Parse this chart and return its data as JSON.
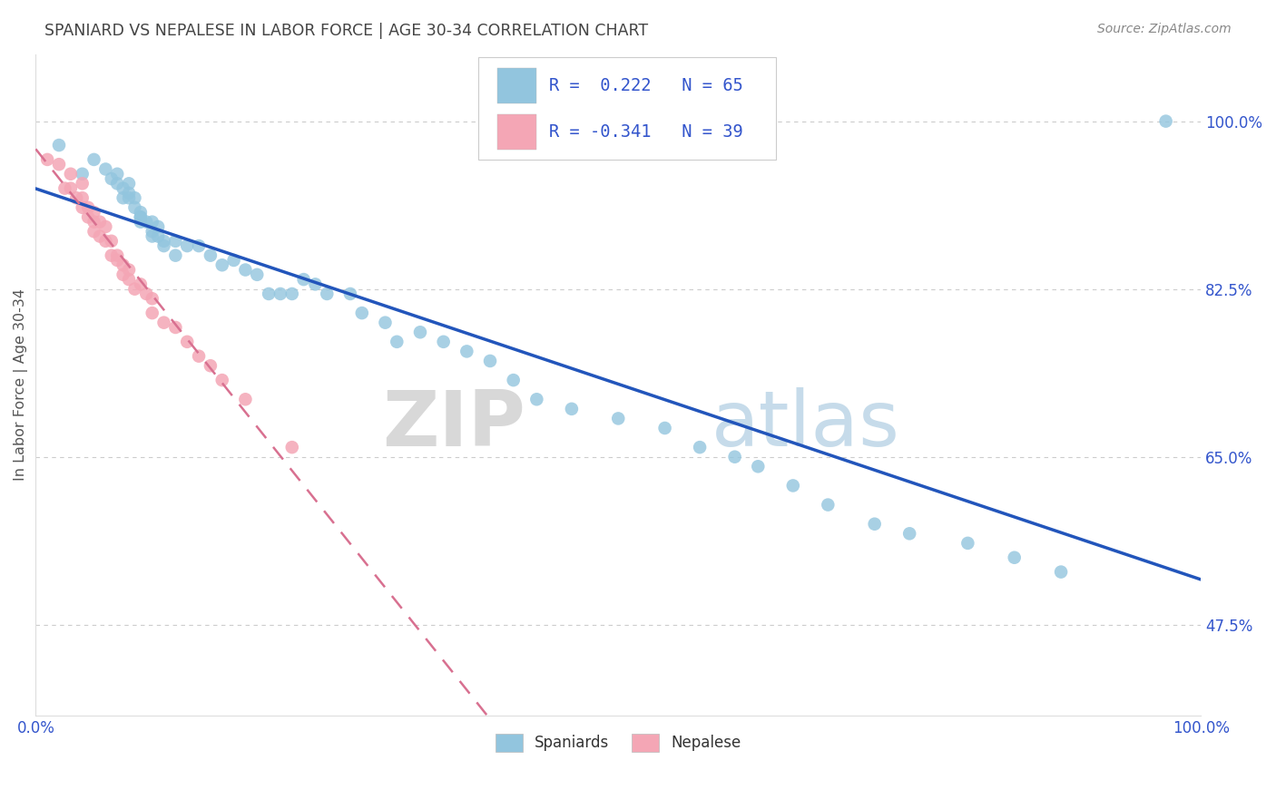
{
  "title": "SPANIARD VS NEPALESE IN LABOR FORCE | AGE 30-34 CORRELATION CHART",
  "source": "Source: ZipAtlas.com",
  "ylabel": "In Labor Force | Age 30-34",
  "y_tick_labels": [
    "47.5%",
    "65.0%",
    "82.5%",
    "100.0%"
  ],
  "y_tick_values": [
    0.475,
    0.65,
    0.825,
    1.0
  ],
  "xlim": [
    0.0,
    1.0
  ],
  "ylim": [
    0.38,
    1.07
  ],
  "legend_label_1": "Spaniards",
  "legend_label_2": "Nepalese",
  "r1": 0.222,
  "n1": 65,
  "r2": -0.341,
  "n2": 39,
  "blue_color": "#92c5de",
  "blue_line_color": "#2255bb",
  "pink_color": "#f4a6b5",
  "pink_line_color": "#d87090",
  "watermark_zip": "ZIP",
  "watermark_atlas": "atlas",
  "background_color": "#ffffff",
  "grid_color": "#cccccc",
  "title_color": "#444444",
  "axis_label_color": "#555555",
  "stats_color": "#3355cc",
  "spaniard_x": [
    0.02,
    0.04,
    0.05,
    0.06,
    0.065,
    0.07,
    0.07,
    0.075,
    0.075,
    0.08,
    0.08,
    0.08,
    0.085,
    0.085,
    0.09,
    0.09,
    0.09,
    0.09,
    0.095,
    0.1,
    0.1,
    0.1,
    0.105,
    0.105,
    0.11,
    0.11,
    0.12,
    0.12,
    0.13,
    0.14,
    0.15,
    0.16,
    0.17,
    0.18,
    0.19,
    0.2,
    0.21,
    0.22,
    0.23,
    0.24,
    0.25,
    0.27,
    0.28,
    0.3,
    0.31,
    0.33,
    0.35,
    0.37,
    0.39,
    0.41,
    0.43,
    0.46,
    0.5,
    0.54,
    0.57,
    0.6,
    0.62,
    0.65,
    0.68,
    0.72,
    0.75,
    0.8,
    0.84,
    0.88,
    0.97
  ],
  "spaniard_y": [
    0.975,
    0.945,
    0.96,
    0.95,
    0.94,
    0.935,
    0.945,
    0.93,
    0.92,
    0.935,
    0.925,
    0.92,
    0.92,
    0.91,
    0.9,
    0.905,
    0.9,
    0.895,
    0.895,
    0.895,
    0.885,
    0.88,
    0.89,
    0.88,
    0.875,
    0.87,
    0.875,
    0.86,
    0.87,
    0.87,
    0.86,
    0.85,
    0.855,
    0.845,
    0.84,
    0.82,
    0.82,
    0.82,
    0.835,
    0.83,
    0.82,
    0.82,
    0.8,
    0.79,
    0.77,
    0.78,
    0.77,
    0.76,
    0.75,
    0.73,
    0.71,
    0.7,
    0.69,
    0.68,
    0.66,
    0.65,
    0.64,
    0.62,
    0.6,
    0.58,
    0.57,
    0.56,
    0.545,
    0.53,
    1.0
  ],
  "nepalese_x": [
    0.01,
    0.02,
    0.025,
    0.03,
    0.03,
    0.035,
    0.04,
    0.04,
    0.04,
    0.045,
    0.045,
    0.05,
    0.05,
    0.05,
    0.055,
    0.055,
    0.06,
    0.06,
    0.065,
    0.065,
    0.07,
    0.07,
    0.075,
    0.075,
    0.08,
    0.08,
    0.085,
    0.09,
    0.095,
    0.1,
    0.1,
    0.11,
    0.12,
    0.13,
    0.14,
    0.15,
    0.16,
    0.18,
    0.22
  ],
  "nepalese_y": [
    0.96,
    0.955,
    0.93,
    0.945,
    0.93,
    0.92,
    0.935,
    0.92,
    0.91,
    0.91,
    0.9,
    0.905,
    0.895,
    0.885,
    0.895,
    0.88,
    0.89,
    0.875,
    0.875,
    0.86,
    0.86,
    0.855,
    0.85,
    0.84,
    0.845,
    0.835,
    0.825,
    0.83,
    0.82,
    0.815,
    0.8,
    0.79,
    0.785,
    0.77,
    0.755,
    0.745,
    0.73,
    0.71,
    0.66
  ]
}
